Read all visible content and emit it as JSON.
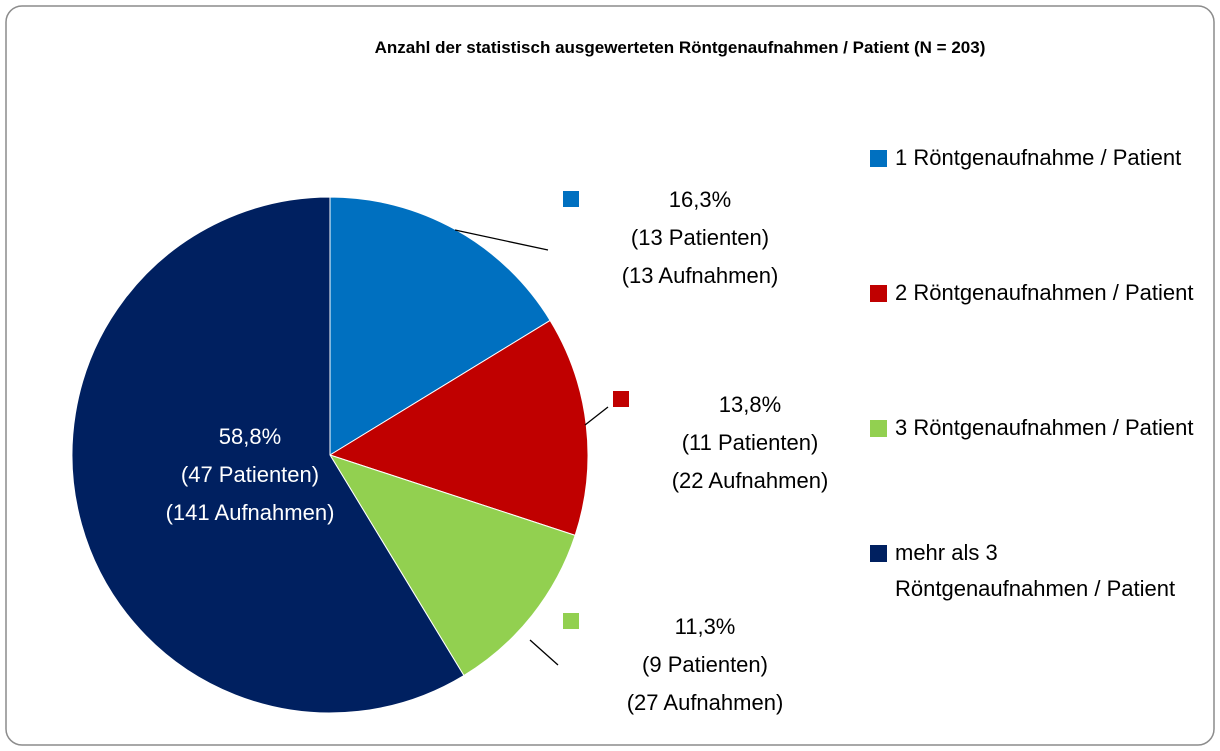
{
  "chart_data": {
    "type": "pie",
    "title": "Anzahl der statistisch ausgewerteten Röntgenaufnahmen / Patient (N = 203)",
    "categories": [
      "1 Röntgenaufnahme / Patient",
      "2 Röntgenaufnahmen / Patient",
      "3 Röntgenaufnahmen / Patient",
      "mehr als 3 Röntgenaufnahmen / Patient"
    ],
    "values": [
      16.3,
      13.8,
      11.3,
      58.8
    ],
    "value_labels": [
      "16,3%",
      "13,8%",
      "11,3%",
      "58,8%"
    ],
    "patient_labels": [
      "(13 Patienten)",
      "(11 Patienten)",
      "(9 Patienten)",
      "(47 Patienten)"
    ],
    "image_labels": [
      "(13 Aufnahmen)",
      "(22 Aufnahmen)",
      "(27 Aufnahmen)",
      "(141 Aufnahmen)"
    ],
    "colors": [
      "#0070c0",
      "#c00000",
      "#92d050",
      "#002060"
    ],
    "legend": "right"
  }
}
